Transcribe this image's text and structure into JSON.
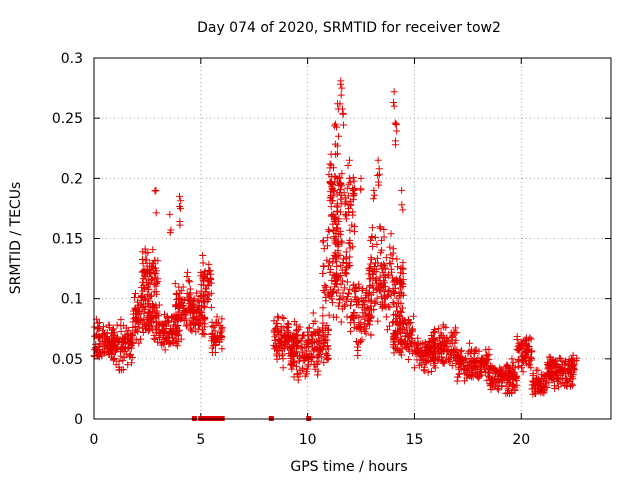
{
  "chart_data": {
    "type": "scatter",
    "title": "Day 074 of 2020, SRMTID for receiver tow2",
    "xlabel": "GPS time / hours",
    "ylabel": "SRMTID / TECUs",
    "xlim": [
      0,
      24.2
    ],
    "ylim": [
      0,
      0.3
    ],
    "x_ticks": [
      0,
      5,
      10,
      15,
      20
    ],
    "y_ticks": [
      0,
      0.05,
      0.1,
      0.15,
      0.2,
      0.25,
      0.3
    ],
    "x_tick_labels": [
      "0",
      "5",
      "10",
      "15",
      "20"
    ],
    "y_tick_labels": [
      "0",
      "0.05",
      "0.1",
      "0.15",
      "0.2",
      "0.25",
      "0.3"
    ],
    "grid": true,
    "marker": "+",
    "color": "#e60000",
    "segments": [
      {
        "x0": 0.0,
        "x1": 1.0,
        "center": 0.065,
        "spread": 0.022
      },
      {
        "x0": 0.8,
        "x1": 1.8,
        "center": 0.062,
        "spread": 0.028
      },
      {
        "x0": 1.8,
        "x1": 3.0,
        "center": 0.085,
        "spread": 0.03
      },
      {
        "x0": 2.2,
        "x1": 3.0,
        "center": 0.12,
        "spread": 0.03
      },
      {
        "x0": 3.0,
        "x1": 4.0,
        "center": 0.075,
        "spread": 0.022
      },
      {
        "x0": 3.8,
        "x1": 4.6,
        "center": 0.095,
        "spread": 0.035
      },
      {
        "x0": 4.5,
        "x1": 5.2,
        "center": 0.085,
        "spread": 0.03
      },
      {
        "x0": 5.0,
        "x1": 5.5,
        "center": 0.11,
        "spread": 0.03
      },
      {
        "x0": 5.5,
        "x1": 6.0,
        "center": 0.07,
        "spread": 0.02
      },
      {
        "x0": 8.4,
        "x1": 9.5,
        "center": 0.065,
        "spread": 0.025
      },
      {
        "x0": 9.2,
        "x1": 10.0,
        "center": 0.055,
        "spread": 0.03
      },
      {
        "x0": 10.0,
        "x1": 11.0,
        "center": 0.06,
        "spread": 0.035
      },
      {
        "x0": 10.7,
        "x1": 12.0,
        "center": 0.12,
        "spread": 0.05
      },
      {
        "x0": 11.0,
        "x1": 12.2,
        "center": 0.18,
        "spread": 0.06
      },
      {
        "x0": 12.0,
        "x1": 13.0,
        "center": 0.09,
        "spread": 0.04
      },
      {
        "x0": 12.8,
        "x1": 13.6,
        "center": 0.12,
        "spread": 0.05
      },
      {
        "x0": 13.5,
        "x1": 14.5,
        "center": 0.11,
        "spread": 0.05
      },
      {
        "x0": 14.0,
        "x1": 15.0,
        "center": 0.07,
        "spread": 0.03
      },
      {
        "x0": 15.0,
        "x1": 16.0,
        "center": 0.055,
        "spread": 0.02
      },
      {
        "x0": 15.8,
        "x1": 17.0,
        "center": 0.06,
        "spread": 0.025
      },
      {
        "x0": 17.0,
        "x1": 18.5,
        "center": 0.045,
        "spread": 0.02
      },
      {
        "x0": 18.5,
        "x1": 19.8,
        "center": 0.035,
        "spread": 0.018
      },
      {
        "x0": 19.8,
        "x1": 20.5,
        "center": 0.055,
        "spread": 0.02
      },
      {
        "x0": 20.5,
        "x1": 21.2,
        "center": 0.03,
        "spread": 0.015
      },
      {
        "x0": 21.2,
        "x1": 22.6,
        "center": 0.04,
        "spread": 0.018
      }
    ],
    "peaks": [
      {
        "x": 2.9,
        "y": 0.19
      },
      {
        "x": 3.55,
        "y": 0.17
      },
      {
        "x": 4.0,
        "y": 0.185
      },
      {
        "x": 4.05,
        "y": 0.175
      },
      {
        "x": 11.1,
        "y": 0.22
      },
      {
        "x": 11.3,
        "y": 0.245
      },
      {
        "x": 11.4,
        "y": 0.262
      },
      {
        "x": 11.55,
        "y": 0.281
      },
      {
        "x": 11.6,
        "y": 0.275
      },
      {
        "x": 11.45,
        "y": 0.235
      },
      {
        "x": 11.05,
        "y": 0.212
      },
      {
        "x": 11.65,
        "y": 0.254
      },
      {
        "x": 13.3,
        "y": 0.215
      },
      {
        "x": 13.35,
        "y": 0.208
      },
      {
        "x": 14.05,
        "y": 0.272
      },
      {
        "x": 14.1,
        "y": 0.246
      },
      {
        "x": 14.15,
        "y": 0.245
      },
      {
        "x": 12.5,
        "y": 0.2
      },
      {
        "x": 13.1,
        "y": 0.19
      },
      {
        "x": 14.4,
        "y": 0.19
      }
    ],
    "zero_markers": [
      4.7,
      5.0,
      5.2,
      5.35,
      5.5,
      5.6,
      5.8,
      6.0,
      8.3,
      10.05
    ]
  }
}
